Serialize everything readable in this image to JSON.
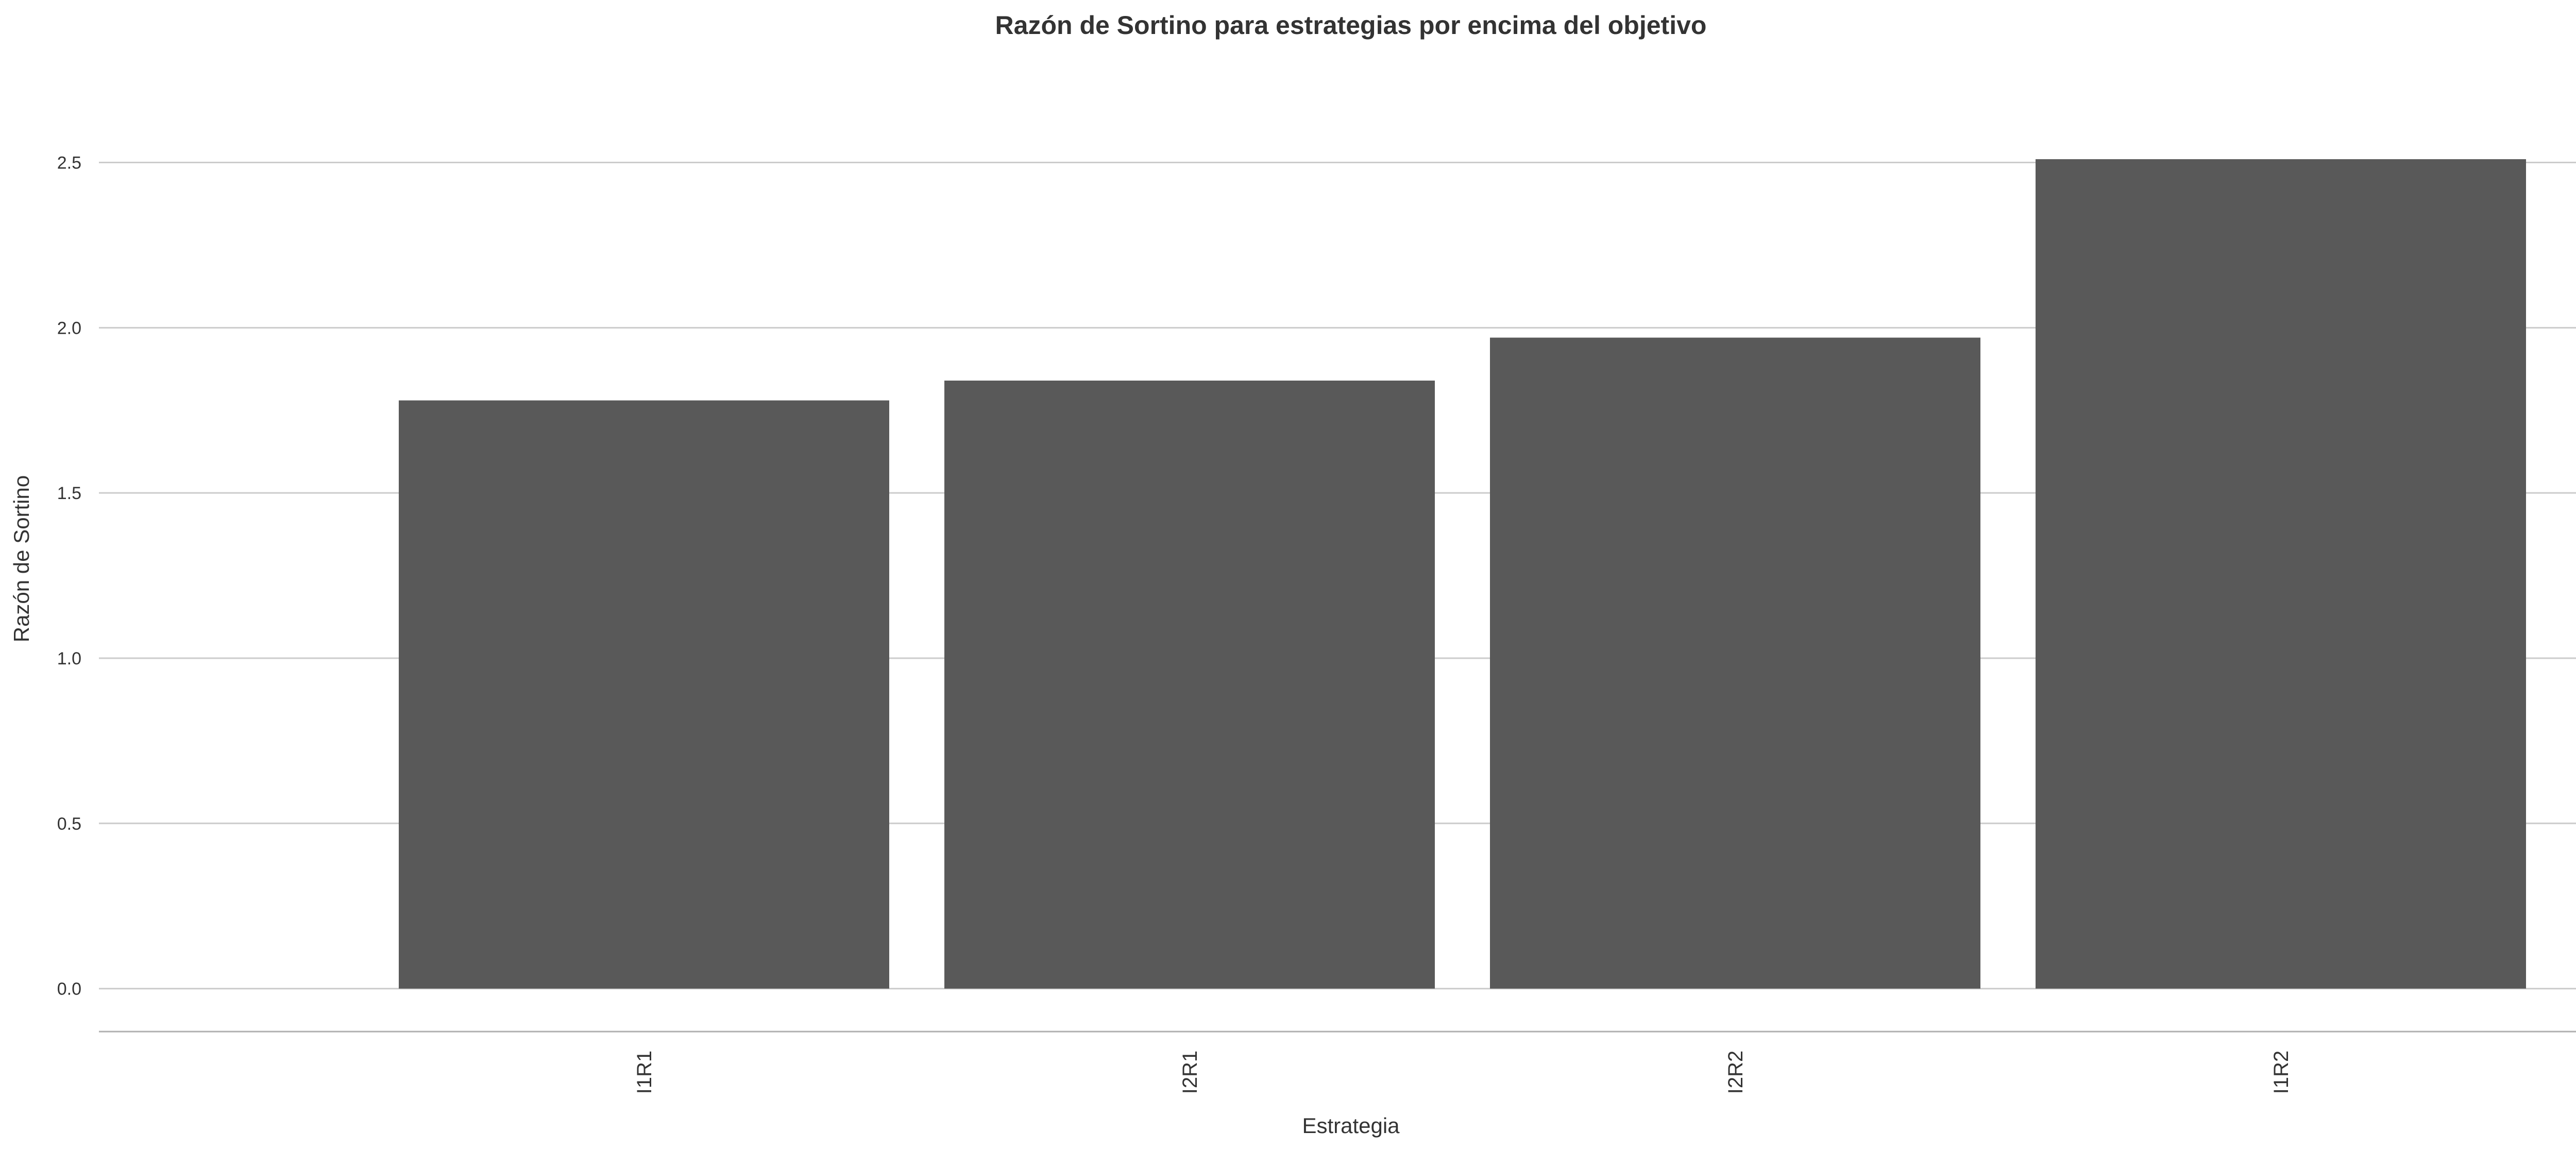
{
  "chart_data": {
    "type": "bar",
    "title": "Razón de Sortino para estrategias por encima del objetivo",
    "xlabel": "Estrategia",
    "ylabel": "Razón de Sortino",
    "categories": [
      "I1R1",
      "I2R1",
      "I2R2",
      "I1R2"
    ],
    "values": [
      1.78,
      1.84,
      1.97,
      2.51
    ],
    "ylim": [
      -0.13,
      2.68
    ],
    "yticks": [
      0.0,
      0.5,
      1.0,
      1.5,
      2.0,
      2.5
    ],
    "ytick_labels": [
      "0.0",
      "0.5",
      "1.0",
      "1.5",
      "2.0",
      "2.5"
    ],
    "grid": "horizontal",
    "bar_color": "#595959",
    "grid_color": "#cccccc"
  }
}
